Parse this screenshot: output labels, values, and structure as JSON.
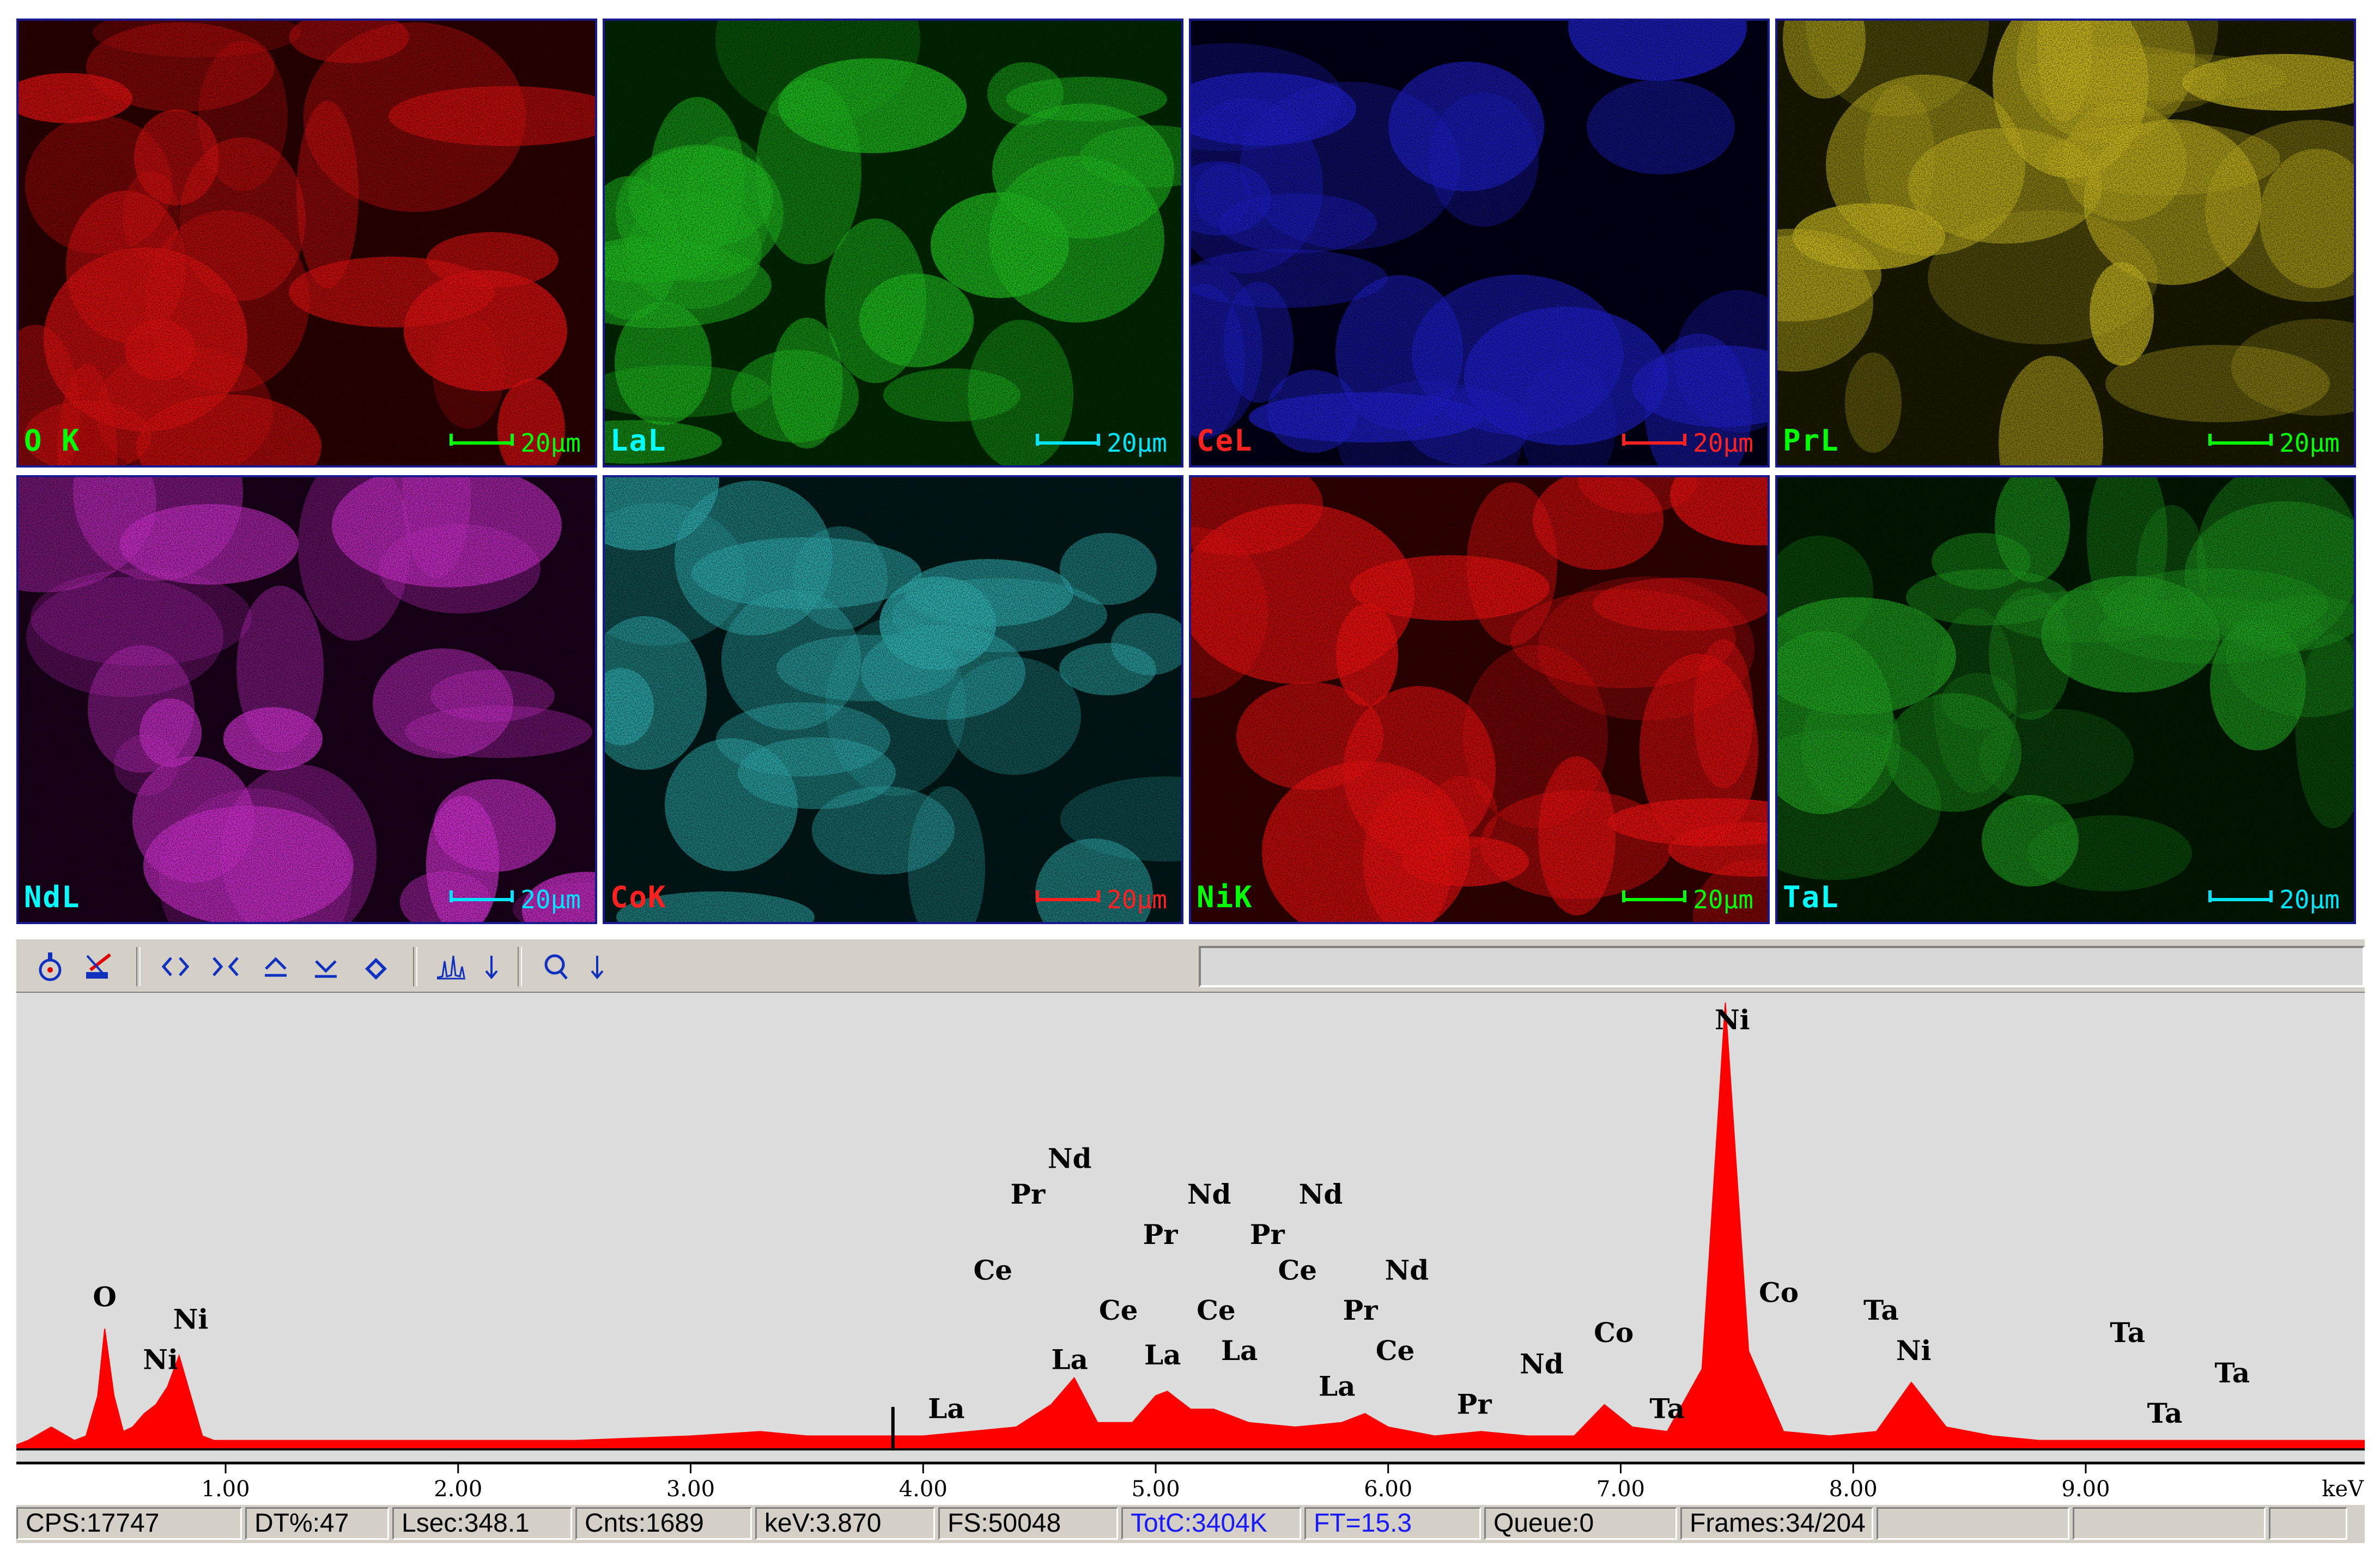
{
  "maps": [
    {
      "label": "O K",
      "label_color": "#00ff00",
      "scale_color": "#00ff00",
      "base": "#2a0000",
      "bright": "#e01010"
    },
    {
      "label": "LaL",
      "label_color": "#00ffff",
      "scale_color": "#00e5ff",
      "base": "#002800",
      "bright": "#20c020"
    },
    {
      "label": "CeL",
      "label_color": "#ff2020",
      "scale_color": "#ff2020",
      "base": "#000016",
      "bright": "#2020d0"
    },
    {
      "label": "PrL",
      "label_color": "#00ff00",
      "scale_color": "#00ff00",
      "base": "#1a1a00",
      "bright": "#c8b820"
    },
    {
      "label": "NdL",
      "label_color": "#00ffff",
      "scale_color": "#00e5ff",
      "base": "#1a001a",
      "bright": "#d030d0"
    },
    {
      "label": "CoK",
      "label_color": "#ff2020",
      "scale_color": "#ff2020",
      "base": "#001818",
      "bright": "#30b0b0"
    },
    {
      "label": "NiK",
      "label_color": "#00ff00",
      "scale_color": "#00ff00",
      "base": "#300000",
      "bright": "#f01010"
    },
    {
      "label": "TaL",
      "label_color": "#00ffff",
      "scale_color": "#00e5ff",
      "base": "#001800",
      "bright": "#20a020"
    }
  ],
  "scale_text": "20μm",
  "toolbar": {
    "icons": [
      "probe-icon",
      "marker-icon",
      "expand-horizontal-icon",
      "compress-horizontal-icon",
      "scale-up-icon",
      "scale-down-icon",
      "erase-icon",
      "peak-id-icon",
      "down-arrow-icon",
      "zoom-icon",
      "down-arrow-icon"
    ]
  },
  "chart_data": {
    "type": "line",
    "x_unit": "keV",
    "xlim": [
      0.1,
      10.2
    ],
    "ylim": [
      0,
      100
    ],
    "x_ticks": [
      "1.00",
      "2.00",
      "3.00",
      "4.00",
      "5.00",
      "6.00",
      "7.00",
      "8.00",
      "9.00"
    ],
    "cursor_kev": 3.87,
    "series": [
      {
        "x": [
          0.1,
          0.15,
          0.25,
          0.35,
          0.4,
          0.45,
          0.48,
          0.52,
          0.56,
          0.6,
          0.65,
          0.7,
          0.75,
          0.8,
          0.85,
          0.9,
          0.95,
          1.0,
          1.2,
          1.5,
          1.8,
          2.0,
          2.5,
          3.0,
          3.3,
          3.5,
          3.8,
          4.0,
          4.2,
          4.4,
          4.55,
          4.65,
          4.75,
          4.9,
          5.0,
          5.05,
          5.15,
          5.25,
          5.4,
          5.6,
          5.8,
          5.9,
          6.0,
          6.2,
          6.4,
          6.6,
          6.8,
          6.93,
          7.05,
          7.2,
          7.35,
          7.45,
          7.55,
          7.7,
          7.9,
          8.1,
          8.25,
          8.4,
          8.6,
          8.8,
          9.0,
          9.5,
          10.0,
          10.2
        ],
        "y": [
          1,
          2,
          5,
          2,
          3,
          12,
          27,
          12,
          4,
          5,
          8,
          10,
          14,
          21,
          12,
          3,
          2,
          2,
          2,
          2,
          2,
          2,
          2,
          3,
          4,
          3,
          3,
          3,
          4,
          5,
          10,
          16,
          6,
          6,
          12,
          13,
          9,
          9,
          6,
          5,
          6,
          8,
          5,
          3,
          4,
          3,
          3,
          10,
          5,
          4,
          18,
          100,
          22,
          4,
          3,
          4,
          15,
          5,
          3,
          2,
          2,
          2,
          2,
          2
        ]
      }
    ],
    "peak_labels": [
      {
        "text": "O",
        "x": 0.48,
        "y": 32
      },
      {
        "text": "Ni",
        "x": 0.85,
        "y": 27
      },
      {
        "text": "Ni",
        "x": 0.72,
        "y": 18
      },
      {
        "text": "La",
        "x": 4.1,
        "y": 7
      },
      {
        "text": "Ce",
        "x": 4.3,
        "y": 38
      },
      {
        "text": "Pr",
        "x": 4.45,
        "y": 55
      },
      {
        "text": "Nd",
        "x": 4.63,
        "y": 63
      },
      {
        "text": "La",
        "x": 4.63,
        "y": 18
      },
      {
        "text": "Ce",
        "x": 4.84,
        "y": 29
      },
      {
        "text": "Pr",
        "x": 5.02,
        "y": 46
      },
      {
        "text": "La",
        "x": 5.03,
        "y": 19
      },
      {
        "text": "Nd",
        "x": 5.23,
        "y": 55
      },
      {
        "text": "Ce",
        "x": 5.26,
        "y": 29
      },
      {
        "text": "La",
        "x": 5.36,
        "y": 20
      },
      {
        "text": "Pr",
        "x": 5.48,
        "y": 46
      },
      {
        "text": "Nd",
        "x": 5.71,
        "y": 55
      },
      {
        "text": "Ce",
        "x": 5.61,
        "y": 38
      },
      {
        "text": "La",
        "x": 5.78,
        "y": 12
      },
      {
        "text": "Pr",
        "x": 5.88,
        "y": 29
      },
      {
        "text": "Nd",
        "x": 6.08,
        "y": 38
      },
      {
        "text": "Ce",
        "x": 6.03,
        "y": 20
      },
      {
        "text": "Pr",
        "x": 6.37,
        "y": 8
      },
      {
        "text": "Nd",
        "x": 6.66,
        "y": 17
      },
      {
        "text": "Co",
        "x": 6.97,
        "y": 24
      },
      {
        "text": "Ta",
        "x": 7.2,
        "y": 7
      },
      {
        "text": "Ni",
        "x": 7.48,
        "y": 94
      },
      {
        "text": "Co",
        "x": 7.68,
        "y": 33
      },
      {
        "text": "Ta",
        "x": 8.12,
        "y": 29
      },
      {
        "text": "Ni",
        "x": 8.26,
        "y": 20
      },
      {
        "text": "Ta",
        "x": 9.18,
        "y": 24
      },
      {
        "text": "Ta",
        "x": 9.34,
        "y": 6
      },
      {
        "text": "Ta",
        "x": 9.63,
        "y": 15
      }
    ],
    "axis_unit_label": "keV",
    "fill_color": "#ff0000"
  },
  "status": {
    "fields": [
      {
        "text": "CPS:17747",
        "color": "#000000"
      },
      {
        "text": "DT%:47",
        "color": "#000000"
      },
      {
        "text": "Lsec:348.1",
        "color": "#000000"
      },
      {
        "text": "Cnts:1689",
        "color": "#000000"
      },
      {
        "text": "keV:3.870",
        "color": "#000000"
      },
      {
        "text": "FS:50048",
        "color": "#000000"
      },
      {
        "text": "TotC:3404K",
        "color": "#1a1aff"
      },
      {
        "text": "FT=15.3",
        "color": "#1a1aff"
      },
      {
        "text": "Queue:0",
        "color": "#000000"
      },
      {
        "text": "Frames:34/204",
        "color": "#000000"
      },
      {
        "text": "",
        "color": "#000000"
      },
      {
        "text": "",
        "color": "#000000"
      },
      {
        "text": "",
        "color": "#000000"
      }
    ]
  }
}
